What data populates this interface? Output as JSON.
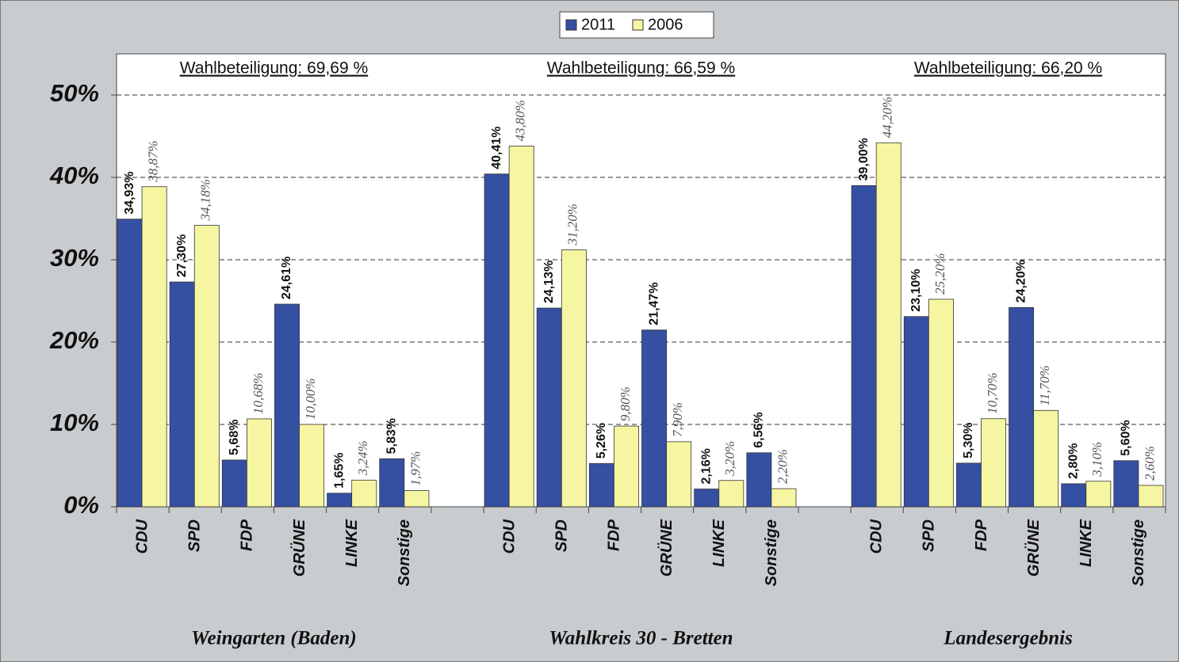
{
  "chart_data": {
    "type": "bar",
    "categories": [
      "CDU",
      "SPD",
      "FDP",
      "GRÜNE",
      "LINKE",
      "Sonstige",
      null,
      "CDU",
      "SPD",
      "FDP",
      "GRÜNE",
      "LINKE",
      "Sonstige",
      null,
      "CDU",
      "SPD",
      "FDP",
      "GRÜNE",
      "LINKE",
      "Sonstige"
    ],
    "groups": [
      {
        "label": "Weingarten (Baden)",
        "turnout": "Wahlbeteiligung: 69,69 %"
      },
      {
        "label": "Wahlkreis 30 - Bretten",
        "turnout": "Wahlbeteiligung: 66,59 %"
      },
      {
        "label": "Landesergebnis",
        "turnout": "Wahlbeteiligung: 66,20 %"
      }
    ],
    "series": [
      {
        "name": "2011",
        "color": "#3550a3",
        "values": [
          34.93,
          27.3,
          5.68,
          24.61,
          1.65,
          5.83,
          null,
          40.41,
          24.13,
          5.26,
          21.47,
          2.16,
          6.56,
          null,
          39.0,
          23.1,
          5.3,
          24.2,
          2.8,
          5.6
        ],
        "value_labels": [
          "34,93%",
          "27,30%",
          "5,68%",
          "24,61%",
          "1,65%",
          "5,83%",
          null,
          "40,41%",
          "24,13%",
          "5,26%",
          "21,47%",
          "2,16%",
          "6,56%",
          null,
          "39,00%",
          "23,10%",
          "5,30%",
          "24,20%",
          "2,80%",
          "5,60%"
        ]
      },
      {
        "name": "2006",
        "color": "#f6f6a2",
        "values": [
          38.87,
          34.18,
          10.68,
          10.0,
          3.24,
          1.97,
          null,
          43.8,
          31.2,
          9.8,
          7.9,
          3.2,
          2.2,
          null,
          44.2,
          25.2,
          10.7,
          11.7,
          3.1,
          2.6
        ],
        "value_labels": [
          "38,87%",
          "34,18%",
          "10,68%",
          "10,00%",
          "3,24%",
          "1,97%",
          null,
          "43,80%",
          "31,20%",
          "9,80%",
          "7,90%",
          "3,20%",
          "2,20%",
          null,
          "44,20%",
          "25,20%",
          "10,70%",
          "11,70%",
          "3,10%",
          "2,60%"
        ]
      }
    ],
    "ylim": [
      0,
      55
    ],
    "yticks": [
      {
        "value": 0,
        "label": "0%"
      },
      {
        "value": 10,
        "label": "10%"
      },
      {
        "value": 20,
        "label": "20%"
      },
      {
        "value": 30,
        "label": "30%"
      },
      {
        "value": 40,
        "label": "40%"
      },
      {
        "value": 50,
        "label": "50%"
      }
    ],
    "grid": true
  }
}
